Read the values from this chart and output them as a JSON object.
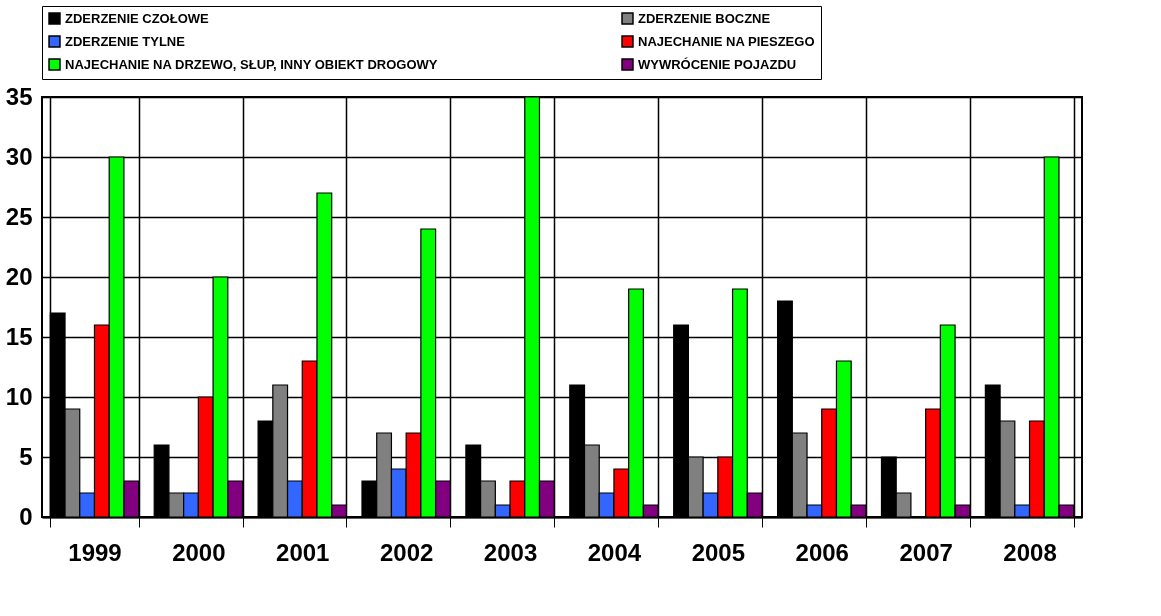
{
  "chart_data": {
    "type": "bar",
    "categories": [
      "1999",
      "2000",
      "2001",
      "2002",
      "2003",
      "2004",
      "2005",
      "2006",
      "2007",
      "2008"
    ],
    "series": [
      {
        "name": "ZDERZENIE CZOŁOWE",
        "color": "#000000",
        "values": [
          17,
          6,
          8,
          3,
          6,
          11,
          16,
          18,
          5,
          11
        ]
      },
      {
        "name": "ZDERZENIE BOCZNE",
        "color": "#808080",
        "values": [
          9,
          2,
          11,
          7,
          3,
          6,
          5,
          7,
          2,
          8
        ]
      },
      {
        "name": "ZDERZENIE TYLNE",
        "color": "#3366ff",
        "values": [
          2,
          2,
          3,
          4,
          1,
          2,
          2,
          1,
          null,
          1
        ]
      },
      {
        "name": "NAJECHANIE NA PIESZEGO",
        "color": "#ff0000",
        "values": [
          16,
          10,
          13,
          7,
          3,
          4,
          5,
          9,
          9,
          8
        ]
      },
      {
        "name": "NAJECHANIE NA DRZEWO, SŁUP, INNY OBIEKT DROGOWY",
        "color": "#00ff00",
        "values": [
          30,
          20,
          27,
          24,
          35,
          19,
          19,
          13,
          16,
          30
        ]
      },
      {
        "name": "WYWRÓCENIE POJAZDU",
        "color": "#800080",
        "values": [
          3,
          3,
          1,
          3,
          3,
          1,
          2,
          1,
          1,
          1
        ]
      }
    ],
    "ylim": [
      0,
      35
    ],
    "yticks": [
      0,
      5,
      10,
      15,
      20,
      25,
      30,
      35
    ],
    "grid": true,
    "legend": "top"
  }
}
